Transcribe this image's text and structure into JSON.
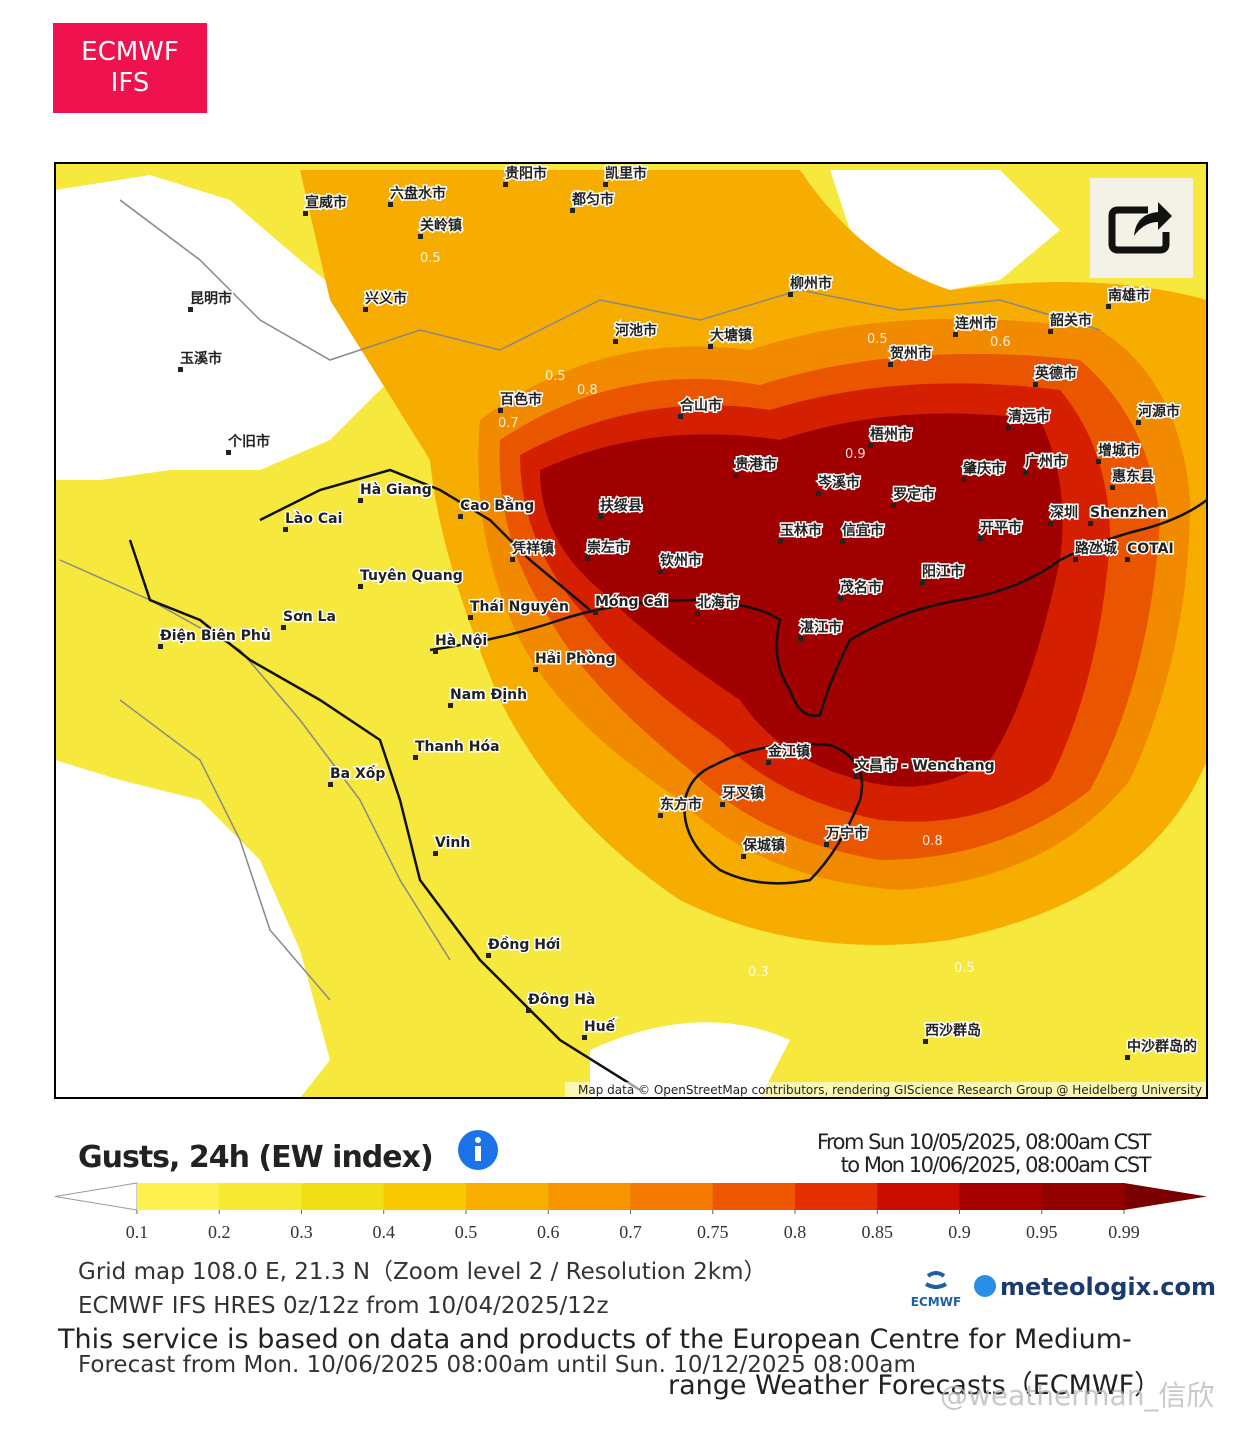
{
  "badge": {
    "lines": [
      "ECMWF",
      "IFS"
    ]
  },
  "map": {
    "places": [
      "贵阳市",
      "凯里市",
      "六盘水市",
      "宣威市",
      "都匀市",
      "关岭镇",
      "昆明市",
      "兴义市",
      "玉溪市",
      "个旧市",
      "河池市",
      "大塘镇",
      "柳州市",
      "百色市",
      "合山市",
      "贺州市",
      "连州市",
      "韶关市",
      "南雄市",
      "英德市",
      "清远市",
      "河源市",
      "梧州市",
      "贵港市",
      "岑溪市",
      "罗定市",
      "肇庆市",
      "广州市",
      "增城市",
      "惠东县",
      "扶绥县",
      "玉林市",
      "信宜市",
      "开平市",
      "深圳",
      "Shenzhen",
      "路氹城",
      "COTAI",
      "凭祥镇",
      "崇左市",
      "钦州市",
      "阳江市",
      "茂名市",
      "北海市",
      "湛江市",
      "Cao Bằng",
      "Hà Giang",
      "Lào Cai",
      "Tuyên Quang",
      "Thái Nguyên",
      "Móng Cái",
      "Sơn La",
      "Điện Biên Phủ",
      "Hà Nội",
      "Hải Phòng",
      "Nam Định",
      "Thanh Hóa",
      "Ba Xốp",
      "Vinh",
      "Đồng Hới",
      "Đông Hà",
      "Huế",
      "金江镇",
      "文昌市 - Wenchang",
      "东方市",
      "牙叉镇",
      "保城镇",
      "万宁市",
      "西沙群岛",
      "中沙群岛的"
    ],
    "contour_labels": [
      0.5,
      0.5,
      0.8,
      0.7,
      0.5,
      0.6,
      0.9,
      0.8,
      0.3,
      0.5
    ],
    "attribution": "Map data © OpenStreetMap contributors, rendering GIScience Research Group @ Heidelberg University"
  },
  "legend": {
    "title": "Gusts, 24h (EW index)",
    "from": "From Sun 10/05/2025, 08:00am CST",
    "to": "to Mon 10/06/2025, 08:00am CST",
    "ticks": [
      0.1,
      0.2,
      0.3,
      0.4,
      0.5,
      0.6,
      0.7,
      0.75,
      0.8,
      0.85,
      0.9,
      0.95,
      0.99
    ],
    "colors": [
      "#fcf14e",
      "#f7e832",
      "#f2de14",
      "#f8c800",
      "#f8ae00",
      "#f79500",
      "#f47a00",
      "#ee5800",
      "#e43000",
      "#c90e00",
      "#a80000",
      "#930000"
    ],
    "under_color": "#ffffff",
    "over_color": "#7a0000"
  },
  "footer": {
    "grid": "Grid map 108.0 E, 21.3 N（Zoom level 2 / Resolution 2km）",
    "model": "ECMWF IFS HRES 0z/12z from 10/04/2025/12z",
    "forecast": "Forecast from Mon. 10/06/2025 08:00am until Sun. 10/12/2025 08:00am",
    "service": [
      "This service is based on data and products of the European Centre for Medium-",
      "range Weather Forecasts（ECMWF）"
    ],
    "ecmwf_logo": "ECMWF",
    "site": "meteologix.com",
    "watermark": "@weatherman_信欣"
  }
}
